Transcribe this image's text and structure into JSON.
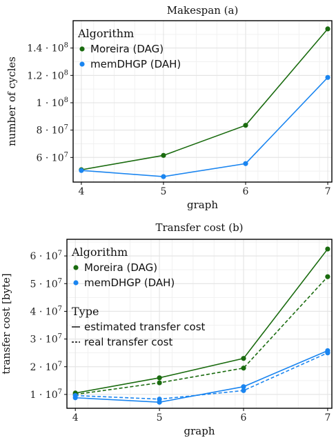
{
  "chart_data": [
    {
      "type": "line",
      "title": "Makespan (a)",
      "xlabel": "graph",
      "ylabel": "number of cycles",
      "x": [
        4,
        5,
        6,
        7
      ],
      "xlim": [
        3.9,
        7.05
      ],
      "ylim": [
        42000000,
        160000000
      ],
      "y_ticks": [
        60000000,
        80000000,
        100000000,
        120000000,
        140000000
      ],
      "y_tick_labels": [
        {
          "mant": "6 · 10",
          "exp": "7"
        },
        {
          "mant": "8 · 10",
          "exp": "7"
        },
        {
          "mant": "1 · 10",
          "exp": "8"
        },
        {
          "mant": "1.2 · 10",
          "exp": "8"
        },
        {
          "mant": "1.4 · 10",
          "exp": "8"
        }
      ],
      "grid": true,
      "legend": {
        "title": "Algorithm",
        "placement": "top-left"
      },
      "series": [
        {
          "name": "Moreira (DAG)",
          "color": "#1a6b0f",
          "style": "solid",
          "values": [
            51000000,
            61500000,
            83500000,
            154000000
          ]
        },
        {
          "name": "memDHGP (DAH)",
          "color": "#1a85f0",
          "style": "solid",
          "values": [
            50500000,
            46000000,
            55500000,
            118500000
          ]
        }
      ]
    },
    {
      "type": "line",
      "title": "Transfer cost (b)",
      "xlabel": "graph",
      "ylabel": "transfer cost [byte]",
      "x": [
        4,
        5,
        6,
        7
      ],
      "xlim": [
        3.9,
        7.05
      ],
      "ylim": [
        5000000,
        66000000
      ],
      "y_ticks": [
        10000000,
        20000000,
        30000000,
        40000000,
        50000000,
        60000000
      ],
      "y_tick_labels": [
        {
          "mant": "1 · 10",
          "exp": "7"
        },
        {
          "mant": "2 · 10",
          "exp": "7"
        },
        {
          "mant": "3 · 10",
          "exp": "7"
        },
        {
          "mant": "4 · 10",
          "exp": "7"
        },
        {
          "mant": "5 · 10",
          "exp": "7"
        },
        {
          "mant": "6 · 10",
          "exp": "7"
        }
      ],
      "grid": true,
      "legend": {
        "title": "Algorithm",
        "type_title": "Type",
        "placement": "top-left",
        "types": [
          "estimated transfer cost",
          "real transfer cost"
        ]
      },
      "series": [
        {
          "name": "Moreira (DAG)",
          "type": "estimated transfer cost",
          "color": "#1a6b0f",
          "style": "solid",
          "values": [
            10500000,
            16000000,
            23000000,
            62500000
          ]
        },
        {
          "name": "Moreira (DAG)",
          "type": "real transfer cost",
          "color": "#1a6b0f",
          "style": "dashed",
          "values": [
            10000000,
            14200000,
            19500000,
            52500000
          ]
        },
        {
          "name": "memDHGP (DAH)",
          "type": "estimated transfer cost",
          "color": "#1a85f0",
          "style": "solid",
          "values": [
            8800000,
            7200000,
            12800000,
            25800000
          ]
        },
        {
          "name": "memDHGP (DAH)",
          "type": "real transfer cost",
          "color": "#1a85f0",
          "style": "dashed",
          "values": [
            9600000,
            8300000,
            11400000,
            25000000
          ]
        }
      ]
    }
  ]
}
